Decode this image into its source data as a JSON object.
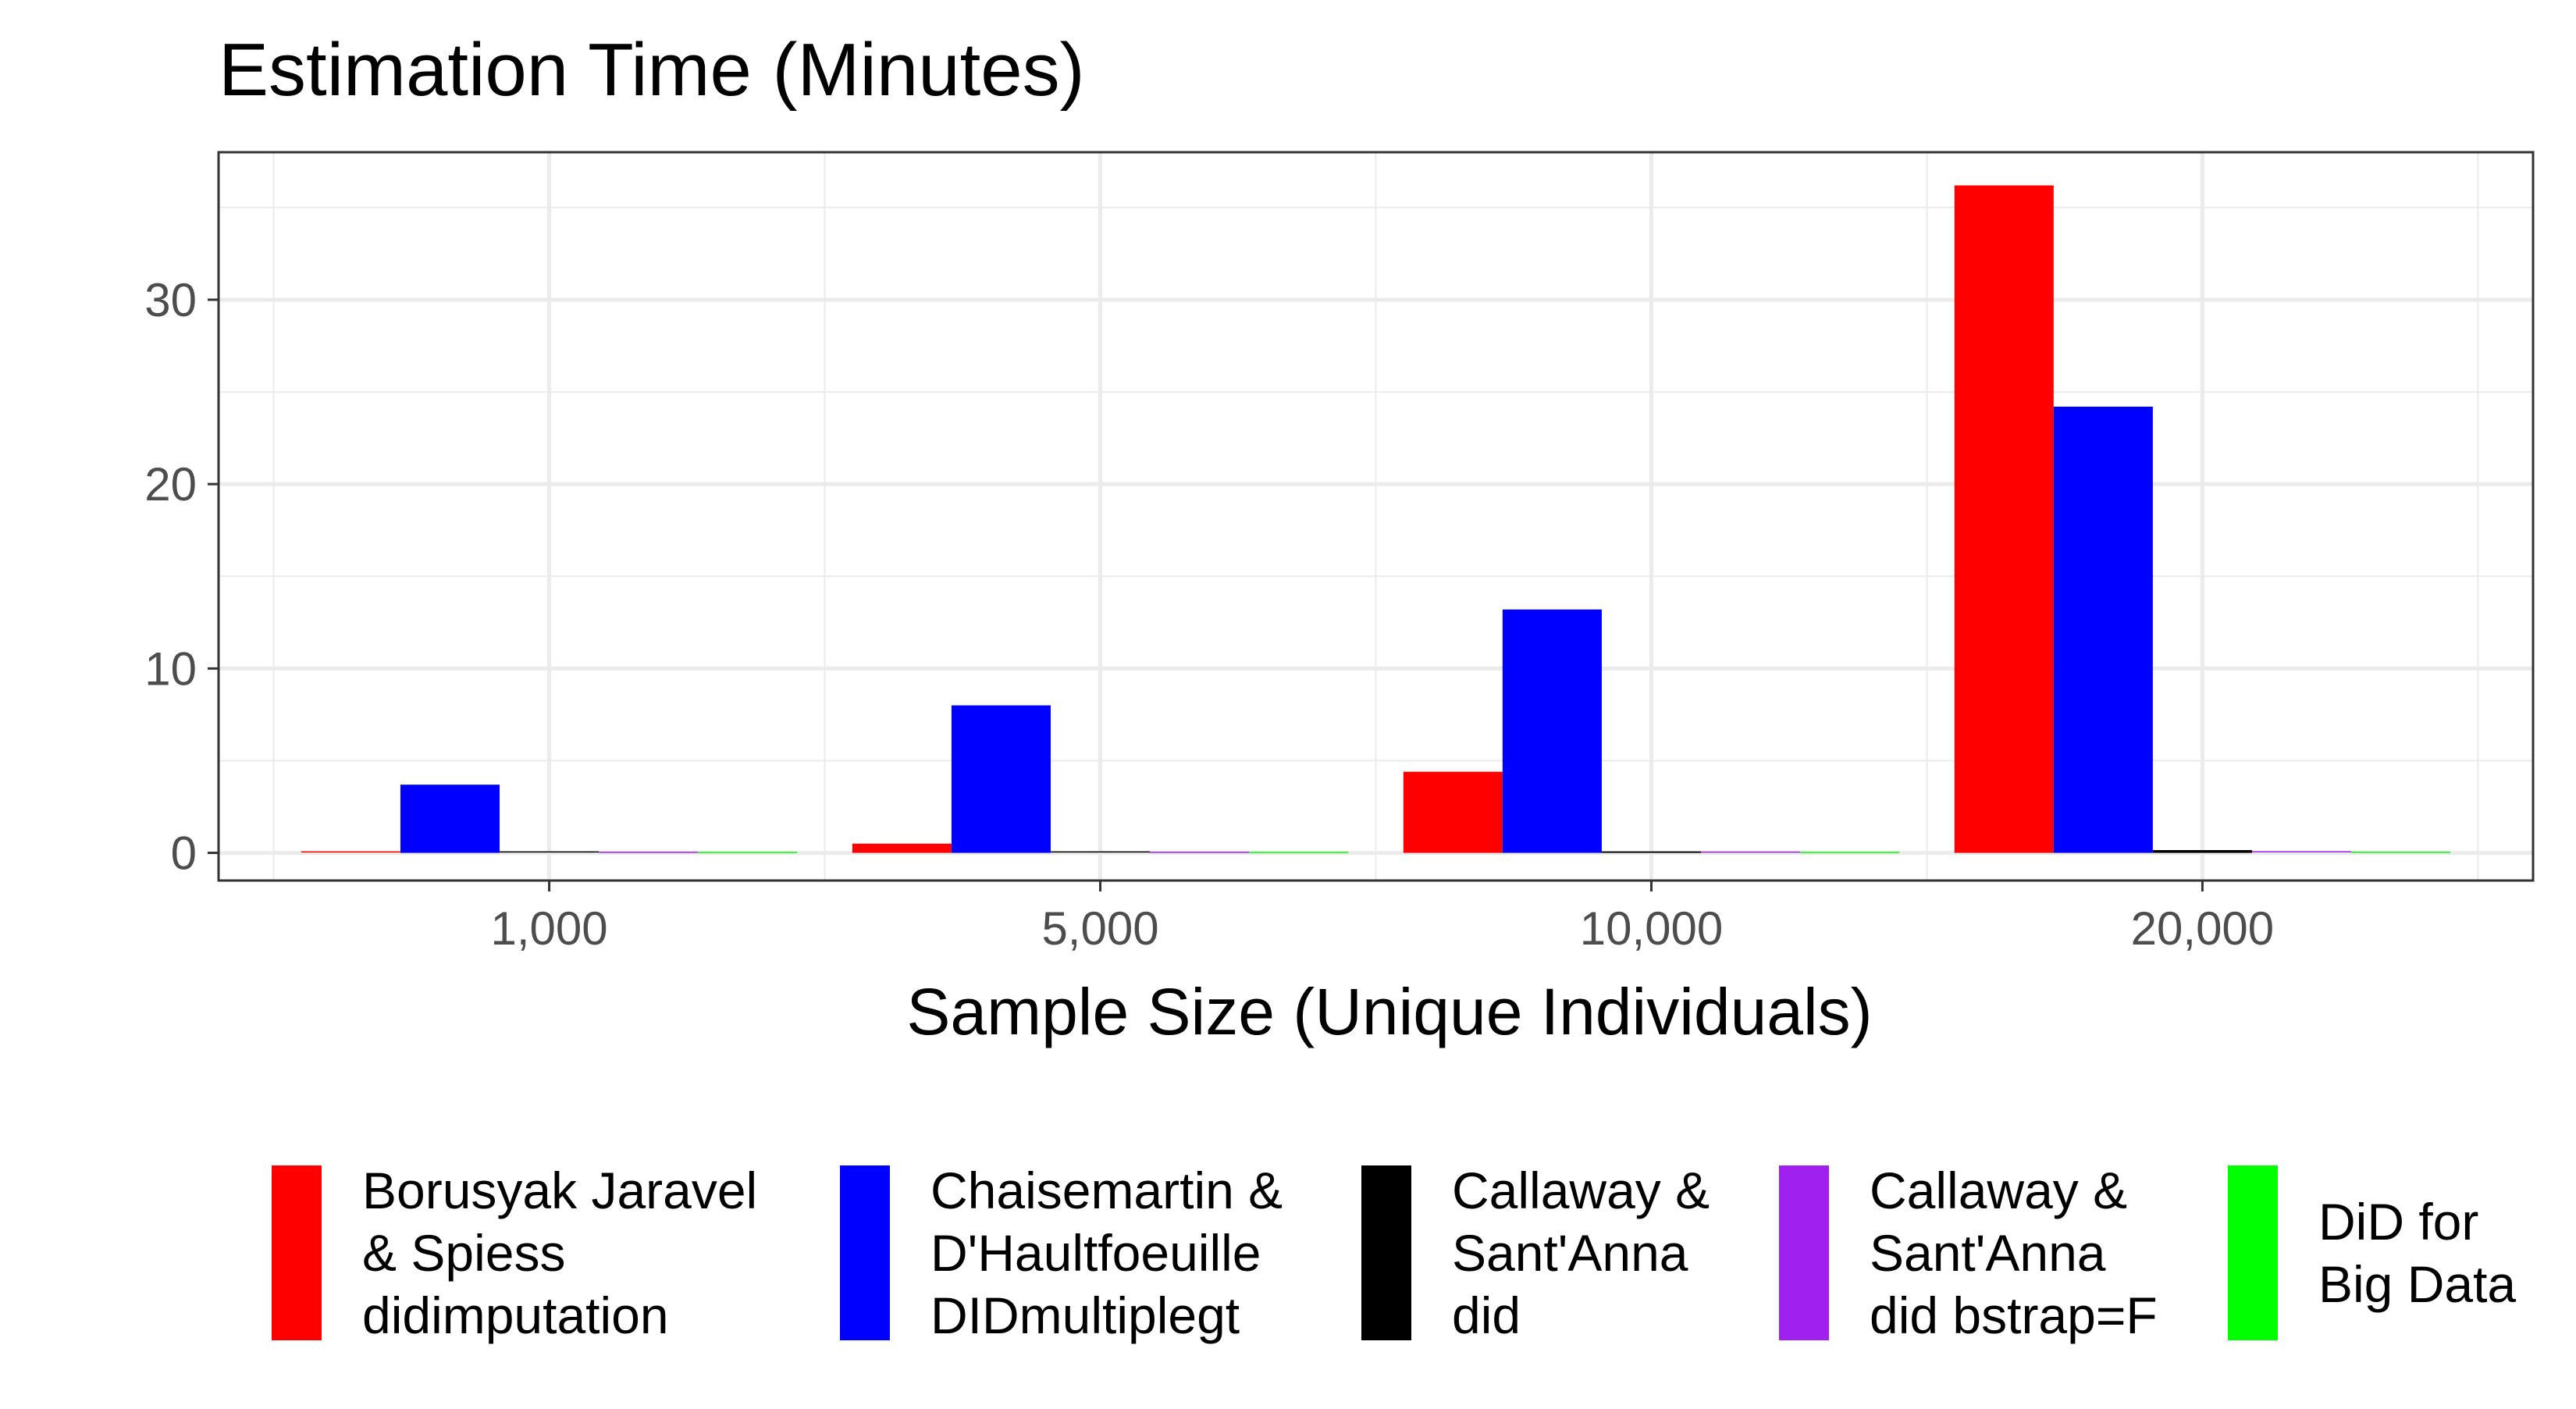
{
  "chart_data": {
    "type": "bar",
    "title": "Estimation Time (Minutes)",
    "xlabel": "Sample Size (Unique Individuals)",
    "ylabel": "",
    "categories": [
      "1,000",
      "5,000",
      "10,000",
      "20,000"
    ],
    "ylim": [
      -1.5,
      38
    ],
    "yticks": [
      0,
      10,
      20,
      30
    ],
    "grid": true,
    "legend_position": "bottom",
    "series": [
      {
        "name": "Borusyak Jaravel & Spiess didimputation",
        "legend_lines": [
          "Borusyak Jaravel",
          "& Spiess",
          "didimputation"
        ],
        "color": "#ff0000",
        "values": [
          0.05,
          0.5,
          4.4,
          36.2
        ]
      },
      {
        "name": "Chaisemartin & D'Haultfoeuille DIDmultiplegt",
        "legend_lines": [
          "Chaisemartin &",
          "D'Haultfoeuille",
          "DIDmultiplegt"
        ],
        "color": "#0000ff",
        "values": [
          3.7,
          8.0,
          13.2,
          24.2
        ]
      },
      {
        "name": "Callaway & Sant'Anna did",
        "legend_lines": [
          "Callaway &",
          "Sant'Anna",
          "did"
        ],
        "color": "#000000",
        "values": [
          0.05,
          0.05,
          0.08,
          0.15
        ]
      },
      {
        "name": "Callaway & Sant'Anna did bstrap=F",
        "legend_lines": [
          "Callaway &",
          "Sant'Anna",
          "did bstrap=F"
        ],
        "color": "#a020f0",
        "values": [
          0.03,
          0.03,
          0.04,
          0.06
        ]
      },
      {
        "name": "DiD for Big Data",
        "legend_lines": [
          "DiD for",
          "Big Data"
        ],
        "color": "#00ff00",
        "values": [
          0.02,
          0.02,
          0.02,
          0.03
        ]
      }
    ]
  }
}
